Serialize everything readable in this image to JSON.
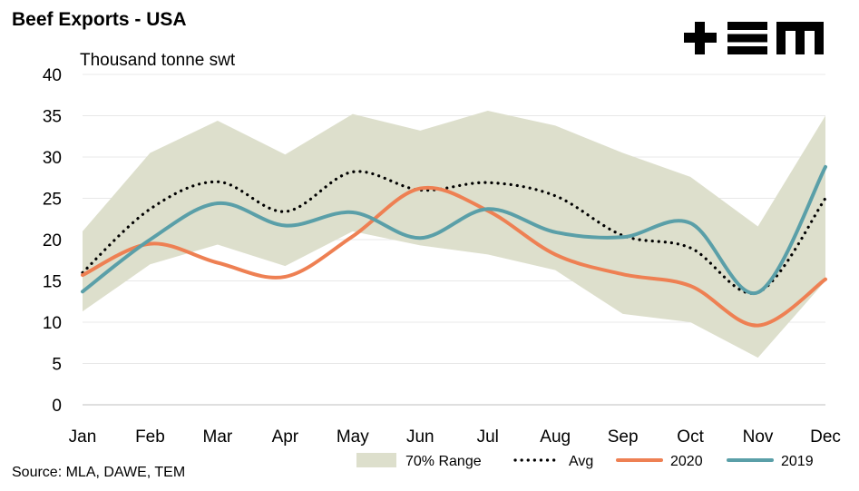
{
  "title": "Beef Exports - USA",
  "subtitle": "Thousand tonne swt",
  "source": "Source: MLA, DAWE, TEM",
  "logo_text": "+EM",
  "colors": {
    "range": "#dddfcc",
    "avg": "#000000",
    "s2020": "#ee8053",
    "s2019": "#5a9fa8",
    "grid": "#e8e8e8"
  },
  "chart_data": {
    "type": "line",
    "title": "Beef Exports - USA",
    "ylabel": "Thousand tonne swt",
    "xlabel": "",
    "ylim": [
      0,
      40
    ],
    "yticks": [
      0,
      5,
      10,
      15,
      20,
      25,
      30,
      35,
      40
    ],
    "grid": true,
    "legend_position": "bottom-right",
    "categories": [
      "Jan",
      "Feb",
      "Mar",
      "Apr",
      "May",
      "Jun",
      "Jul",
      "Aug",
      "Sep",
      "Oct",
      "Nov",
      "Dec"
    ],
    "range": {
      "name": "70% Range",
      "upper": [
        21.0,
        30.5,
        34.4,
        30.3,
        35.2,
        33.2,
        35.6,
        33.8,
        30.5,
        27.6,
        21.6,
        35.0
      ],
      "lower": [
        11.3,
        17.0,
        19.4,
        16.8,
        21.0,
        19.3,
        18.2,
        16.3,
        11.0,
        10.0,
        5.7,
        15.0
      ]
    },
    "series": [
      {
        "name": "Avg",
        "style": "dotted",
        "values": [
          16.0,
          23.7,
          27.0,
          23.4,
          28.2,
          26.0,
          26.9,
          25.3,
          20.5,
          19.0,
          13.6,
          25.0
        ]
      },
      {
        "name": "2020",
        "style": "solid",
        "values": [
          15.7,
          19.5,
          17.2,
          15.5,
          20.4,
          26.2,
          23.5,
          18.2,
          15.8,
          14.4,
          9.6,
          15.2
        ]
      },
      {
        "name": "2019",
        "style": "solid",
        "values": [
          13.7,
          20.0,
          24.4,
          21.7,
          23.3,
          20.2,
          23.7,
          20.9,
          20.3,
          22.0,
          13.6,
          28.8
        ]
      }
    ]
  }
}
